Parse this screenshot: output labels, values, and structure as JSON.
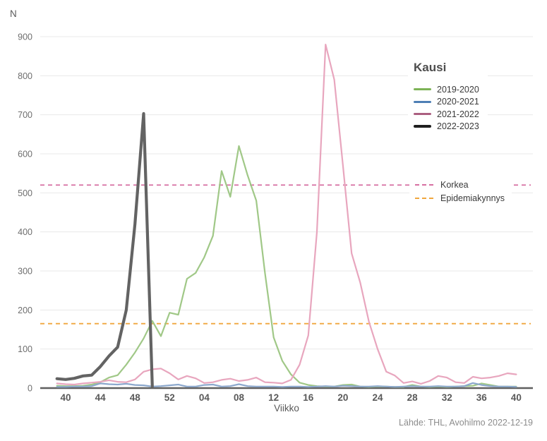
{
  "chart_data": {
    "type": "line",
    "y_axis_title": "N",
    "x_axis_title": "Viikko",
    "legend_title": "Kausi",
    "source": "Lähde: THL, Avohilmo 2022-12-19",
    "grid": true,
    "legend_position": "right-inside",
    "ylim": [
      0,
      920
    ],
    "y_ticks": [
      0,
      100,
      200,
      300,
      400,
      500,
      600,
      700,
      800,
      900
    ],
    "x_tick_labels": [
      "40",
      "44",
      "48",
      "52",
      "04",
      "08",
      "12",
      "16",
      "20",
      "24",
      "28",
      "32",
      "36",
      "40"
    ],
    "weeks": [
      "39",
      "40",
      "41",
      "42",
      "43",
      "44",
      "45",
      "46",
      "47",
      "48",
      "49",
      "50",
      "51",
      "52",
      "01",
      "02",
      "03",
      "04",
      "05",
      "06",
      "07",
      "08",
      "09",
      "10",
      "11",
      "12",
      "13",
      "14",
      "15",
      "16",
      "17",
      "18",
      "19",
      "20",
      "21",
      "22",
      "23",
      "24",
      "25",
      "26",
      "27",
      "28",
      "29",
      "30",
      "31",
      "32",
      "33",
      "34",
      "35",
      "36",
      "37",
      "38",
      "39",
      "40"
    ],
    "series": [
      {
        "name": "2019-2020",
        "color": "#a0c887",
        "legend_color": "#7db356",
        "width": 2.2,
        "values": [
          6,
          5,
          5,
          6,
          9,
          15,
          27,
          33,
          60,
          91,
          127,
          172,
          133,
          193,
          188,
          280,
          295,
          335,
          390,
          556,
          490,
          620,
          545,
          480,
          295,
          130,
          70,
          35,
          14,
          8,
          5,
          4,
          4,
          8,
          9,
          4,
          3,
          4,
          4,
          3,
          3,
          8,
          4,
          3,
          4,
          3,
          4,
          5,
          6,
          12,
          8,
          4,
          4,
          4
        ]
      },
      {
        "name": "2020-2021",
        "color": "#8ca8cd",
        "legend_color": "#4e7fb5",
        "width": 2.2,
        "values": [
          3,
          3,
          4,
          4,
          5,
          12,
          10,
          9,
          11,
          8,
          7,
          4,
          5,
          7,
          9,
          4,
          4,
          8,
          9,
          4,
          5,
          10,
          5,
          4,
          4,
          4,
          3,
          4,
          4,
          3,
          4,
          5,
          4,
          6,
          5,
          4,
          4,
          5,
          4,
          3,
          4,
          5,
          4,
          4,
          5,
          4,
          4,
          5,
          13,
          8,
          5,
          4,
          4,
          3
        ]
      },
      {
        "name": "2021-2022",
        "color": "#e8a6be",
        "legend_color": "#ab5f80",
        "width": 2.2,
        "values": [
          12,
          10,
          9,
          12,
          14,
          16,
          20,
          16,
          15,
          22,
          42,
          48,
          50,
          38,
          22,
          31,
          25,
          13,
          15,
          21,
          24,
          18,
          21,
          27,
          15,
          14,
          12,
          21,
          60,
          135,
          400,
          880,
          790,
          570,
          345,
          270,
          170,
          100,
          42,
          32,
          13,
          17,
          11,
          18,
          31,
          27,
          15,
          13,
          29,
          25,
          27,
          31,
          38,
          35
        ]
      },
      {
        "name": "2022-2023",
        "color": "#636363",
        "legend_color": "#1f1f1f",
        "width": 4.2,
        "values": [
          24,
          22,
          25,
          31,
          33,
          55,
          82,
          105,
          200,
          420,
          703,
          4
        ]
      }
    ],
    "thresholds": [
      {
        "name": "Korkea",
        "value": 520,
        "color": "#d66fa2"
      },
      {
        "name": "Epidemiakynnys",
        "value": 165,
        "color": "#f0a73e"
      }
    ]
  },
  "style_colors": {
    "gridline": "#e8e8e8",
    "axis_line": "#5f5f5f",
    "x_tick_text": "#595959",
    "y_tick_text": "#6e6e6e"
  }
}
